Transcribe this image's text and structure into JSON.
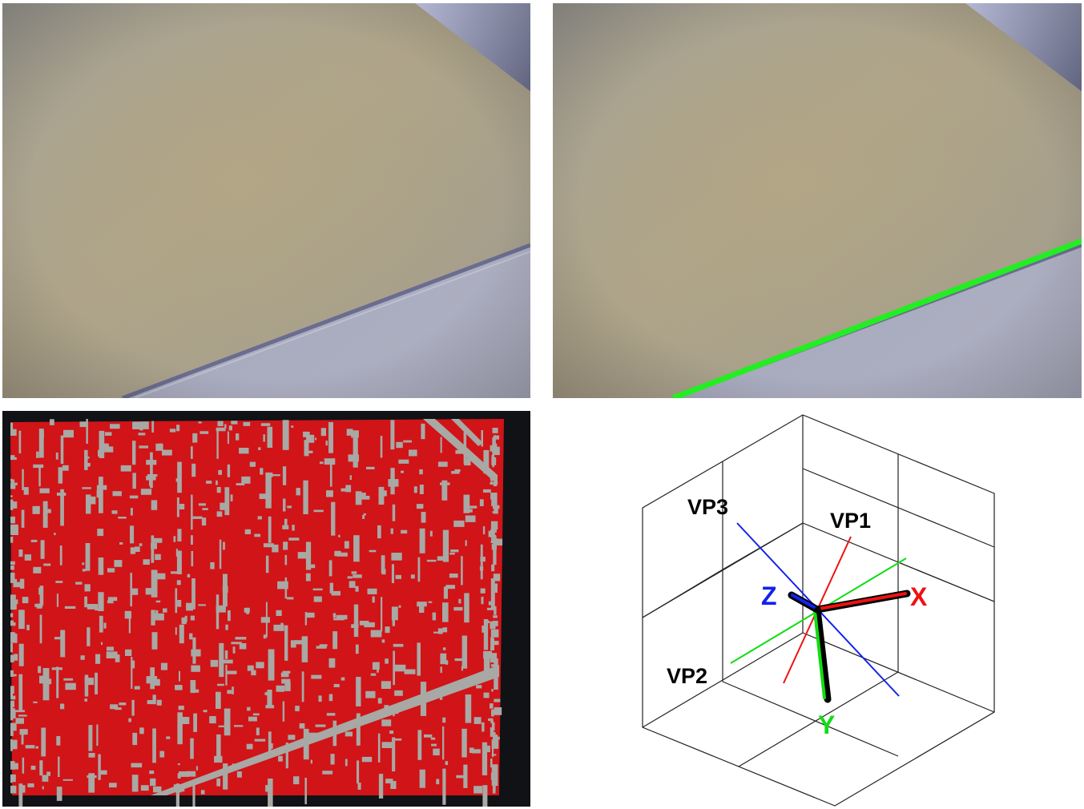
{
  "colors": {
    "wall": "#a9a6a0",
    "floor_shadow": "#a2a4b8",
    "line_green": "#22ee22",
    "mask_red": "#d01418",
    "mask_gray": "#a8a8a4",
    "frame_dark": "#101216",
    "axis_red": "#ee1111",
    "axis_green": "#11dd11",
    "axis_blue": "#1122ee"
  },
  "diagram": {
    "labels": {
      "vp1": "VP1",
      "vp2": "VP2",
      "vp3": "VP3",
      "x": "X",
      "y": "Y",
      "z": "Z"
    }
  }
}
